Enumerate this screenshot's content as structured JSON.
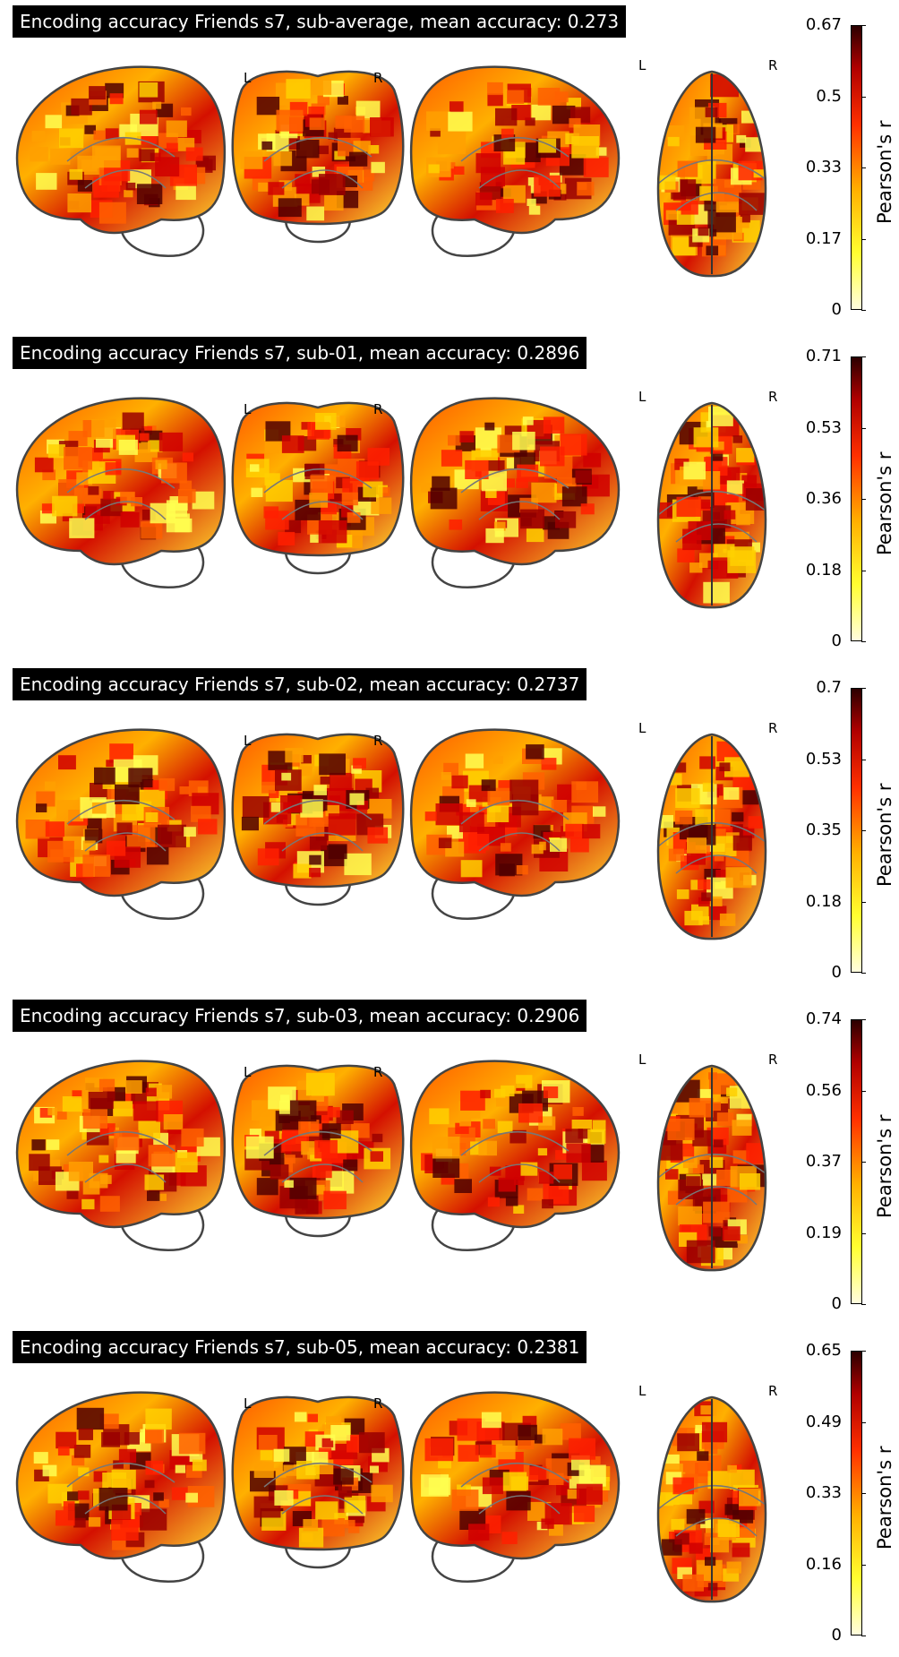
{
  "colorbar": {
    "label": "Pearson's r",
    "colors": [
      "#fffde0",
      "#ffff30",
      "#ffb000",
      "#ff3000",
      "#b00000",
      "#2a0000"
    ]
  },
  "view_labels": {
    "left": "L",
    "right": "R"
  },
  "panels": [
    {
      "title": "Encoding accuracy Friends s7, sub-average, mean accuracy: 0.273",
      "ticks": [
        "0.67",
        "0.5",
        "0.33",
        "0.17",
        "0"
      ]
    },
    {
      "title": "Encoding accuracy Friends s7, sub-01, mean accuracy: 0.2896",
      "ticks": [
        "0.71",
        "0.53",
        "0.36",
        "0.18",
        "0"
      ]
    },
    {
      "title": "Encoding accuracy Friends s7, sub-02, mean accuracy: 0.2737",
      "ticks": [
        "0.7",
        "0.53",
        "0.35",
        "0.18",
        "0"
      ]
    },
    {
      "title": "Encoding accuracy Friends s7, sub-03, mean accuracy: 0.2906",
      "ticks": [
        "0.74",
        "0.56",
        "0.37",
        "0.19",
        "0"
      ]
    },
    {
      "title": "Encoding accuracy Friends s7, sub-05, mean accuracy: 0.2381",
      "ticks": [
        "0.65",
        "0.49",
        "0.33",
        "0.16",
        "0"
      ]
    }
  ]
}
